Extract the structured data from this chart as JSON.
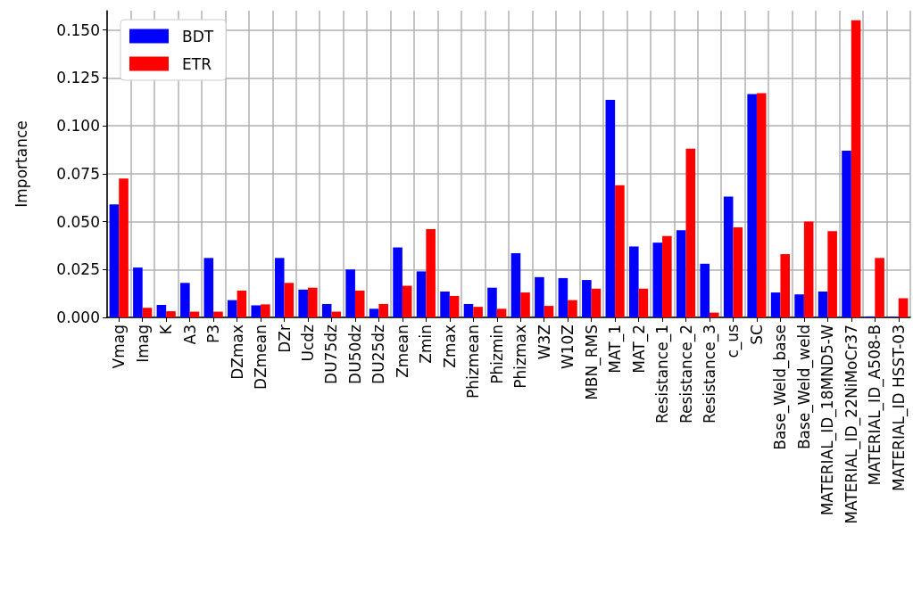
{
  "chart_data": {
    "type": "bar",
    "ylabel": "Importance",
    "categories": [
      "Vmag",
      "Imag",
      "K",
      "A3",
      "P3",
      "DZmax",
      "DZmean",
      "DZr",
      "Ucdz",
      "DU75dz",
      "DU50dz",
      "DU25dz",
      "Zmean",
      "Zmin",
      "Zmax",
      "Phizmean",
      "Phizmin",
      "Phizmax",
      "W3Z",
      "W10Z",
      "MBN_RMS",
      "MAT_1",
      "MAT_2",
      "Resistance_1",
      "Resistance_2",
      "Resistance_3",
      "c_us",
      "SC",
      "Base_Weld_base",
      "Base_Weld_weld",
      "MATERIAL_ID_18MND5-W",
      "MATERIAL_ID_22NiMoCr37",
      "MATERIAL_ID_A508-B",
      "MATERIAL_ID HSST-03"
    ],
    "series": [
      {
        "name": "BDT",
        "color": "#0000ff",
        "values": [
          0.059,
          0.026,
          0.0065,
          0.018,
          0.031,
          0.009,
          0.0063,
          0.031,
          0.0145,
          0.007,
          0.025,
          0.0045,
          0.0365,
          0.024,
          0.0135,
          0.007,
          0.0155,
          0.0335,
          0.021,
          0.0205,
          0.0195,
          0.1135,
          0.037,
          0.039,
          0.0455,
          0.028,
          0.063,
          0.1165,
          0.013,
          0.012,
          0.0135,
          0.087,
          0.0005,
          0.0003
        ]
      },
      {
        "name": "ETR",
        "color": "#ff0000",
        "values": [
          0.0725,
          0.005,
          0.0032,
          0.003,
          0.003,
          0.014,
          0.0068,
          0.018,
          0.0155,
          0.003,
          0.014,
          0.007,
          0.0165,
          0.046,
          0.0112,
          0.0055,
          0.0045,
          0.013,
          0.006,
          0.009,
          0.015,
          0.069,
          0.015,
          0.0425,
          0.088,
          0.0025,
          0.047,
          0.117,
          0.033,
          0.05,
          0.045,
          0.155,
          0.031,
          0.01
        ]
      }
    ],
    "ylim": [
      0,
      0.16
    ],
    "yticks": [
      {
        "value": 0,
        "label": "0.000"
      },
      {
        "value": 0.025,
        "label": "0.025"
      },
      {
        "value": 0.05,
        "label": "0.050"
      },
      {
        "value": 0.075,
        "label": "0.075"
      },
      {
        "value": 0.1,
        "label": "0.100"
      },
      {
        "value": 0.125,
        "label": "0.125"
      },
      {
        "value": 0.15,
        "label": "0.150"
      }
    ],
    "grid": true,
    "legend": "top left"
  }
}
